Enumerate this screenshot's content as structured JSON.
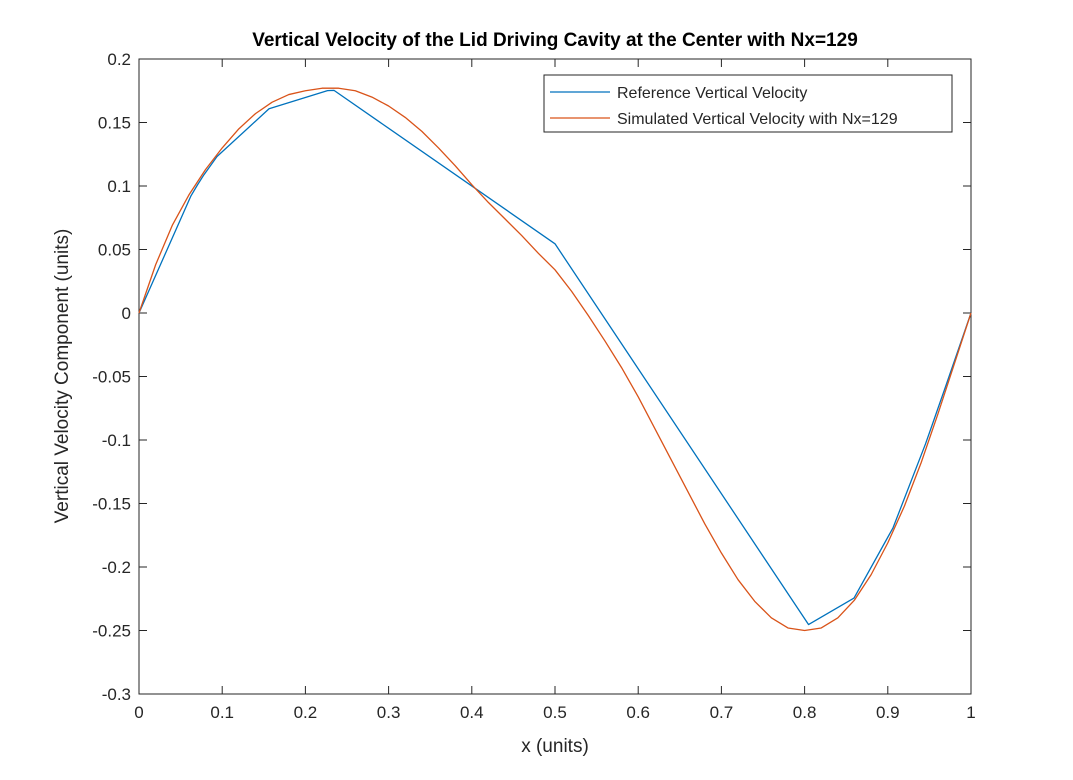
{
  "chart_data": {
    "type": "line",
    "title": "Vertical Velocity of the Lid Driving Cavity at the Center with Nx=129",
    "xlabel": "x (units)",
    "ylabel": "Vertical Velocity Component (units)",
    "xlim": [
      0,
      1
    ],
    "ylim": [
      -0.3,
      0.2
    ],
    "xticks": [
      0,
      0.1,
      0.2,
      0.3,
      0.4,
      0.5,
      0.6,
      0.7,
      0.8,
      0.9,
      1
    ],
    "xtick_labels": [
      "0",
      "0.1",
      "0.2",
      "0.3",
      "0.4",
      "0.5",
      "0.6",
      "0.7",
      "0.8",
      "0.9",
      "1"
    ],
    "yticks": [
      -0.3,
      -0.25,
      -0.2,
      -0.15,
      -0.1,
      -0.05,
      0,
      0.05,
      0.1,
      0.15,
      0.2
    ],
    "ytick_labels": [
      "-0.3",
      "-0.25",
      "-0.2",
      "-0.15",
      "-0.1",
      "-0.05",
      "0",
      "0.05",
      "0.1",
      "0.15",
      "0.2"
    ],
    "grid": false,
    "legend_position": "top-right",
    "series": [
      {
        "name": "Reference Vertical Velocity",
        "color": "#0072BD",
        "x": [
          0,
          0.0625,
          0.0703,
          0.0781,
          0.0938,
          0.1563,
          0.2266,
          0.2344,
          0.5,
          0.8047,
          0.8594,
          0.9063,
          0.9453,
          0.9531,
          0.9609,
          0.9688,
          1
        ],
        "y": [
          0,
          0.0923,
          0.1009,
          0.1089,
          0.1232,
          0.1608,
          0.1751,
          0.1753,
          0.0545,
          -0.2453,
          -0.2245,
          -0.1691,
          -0.1031,
          -0.0886,
          -0.0739,
          -0.0591,
          0
        ]
      },
      {
        "name": "Simulated Vertical Velocity with Nx=129",
        "color": "#D95319",
        "x": [
          0,
          0.02,
          0.04,
          0.06,
          0.08,
          0.1,
          0.12,
          0.14,
          0.16,
          0.18,
          0.2,
          0.22,
          0.24,
          0.26,
          0.28,
          0.3,
          0.32,
          0.34,
          0.36,
          0.38,
          0.4,
          0.42,
          0.44,
          0.46,
          0.48,
          0.5,
          0.52,
          0.54,
          0.56,
          0.58,
          0.6,
          0.62,
          0.64,
          0.66,
          0.68,
          0.7,
          0.72,
          0.74,
          0.76,
          0.78,
          0.8,
          0.82,
          0.84,
          0.86,
          0.88,
          0.9,
          0.92,
          0.94,
          0.96,
          0.98,
          1
        ],
        "y": [
          0,
          0.038,
          0.069,
          0.093,
          0.113,
          0.13,
          0.145,
          0.157,
          0.166,
          0.172,
          0.175,
          0.177,
          0.177,
          0.175,
          0.17,
          0.163,
          0.154,
          0.143,
          0.13,
          0.116,
          0.101,
          0.087,
          0.074,
          0.061,
          0.047,
          0.034,
          0.017,
          -0.002,
          -0.022,
          -0.043,
          -0.066,
          -0.091,
          -0.116,
          -0.141,
          -0.166,
          -0.189,
          -0.21,
          -0.227,
          -0.24,
          -0.248,
          -0.25,
          -0.248,
          -0.24,
          -0.226,
          -0.206,
          -0.181,
          -0.152,
          -0.118,
          -0.08,
          -0.04,
          0
        ]
      }
    ]
  }
}
